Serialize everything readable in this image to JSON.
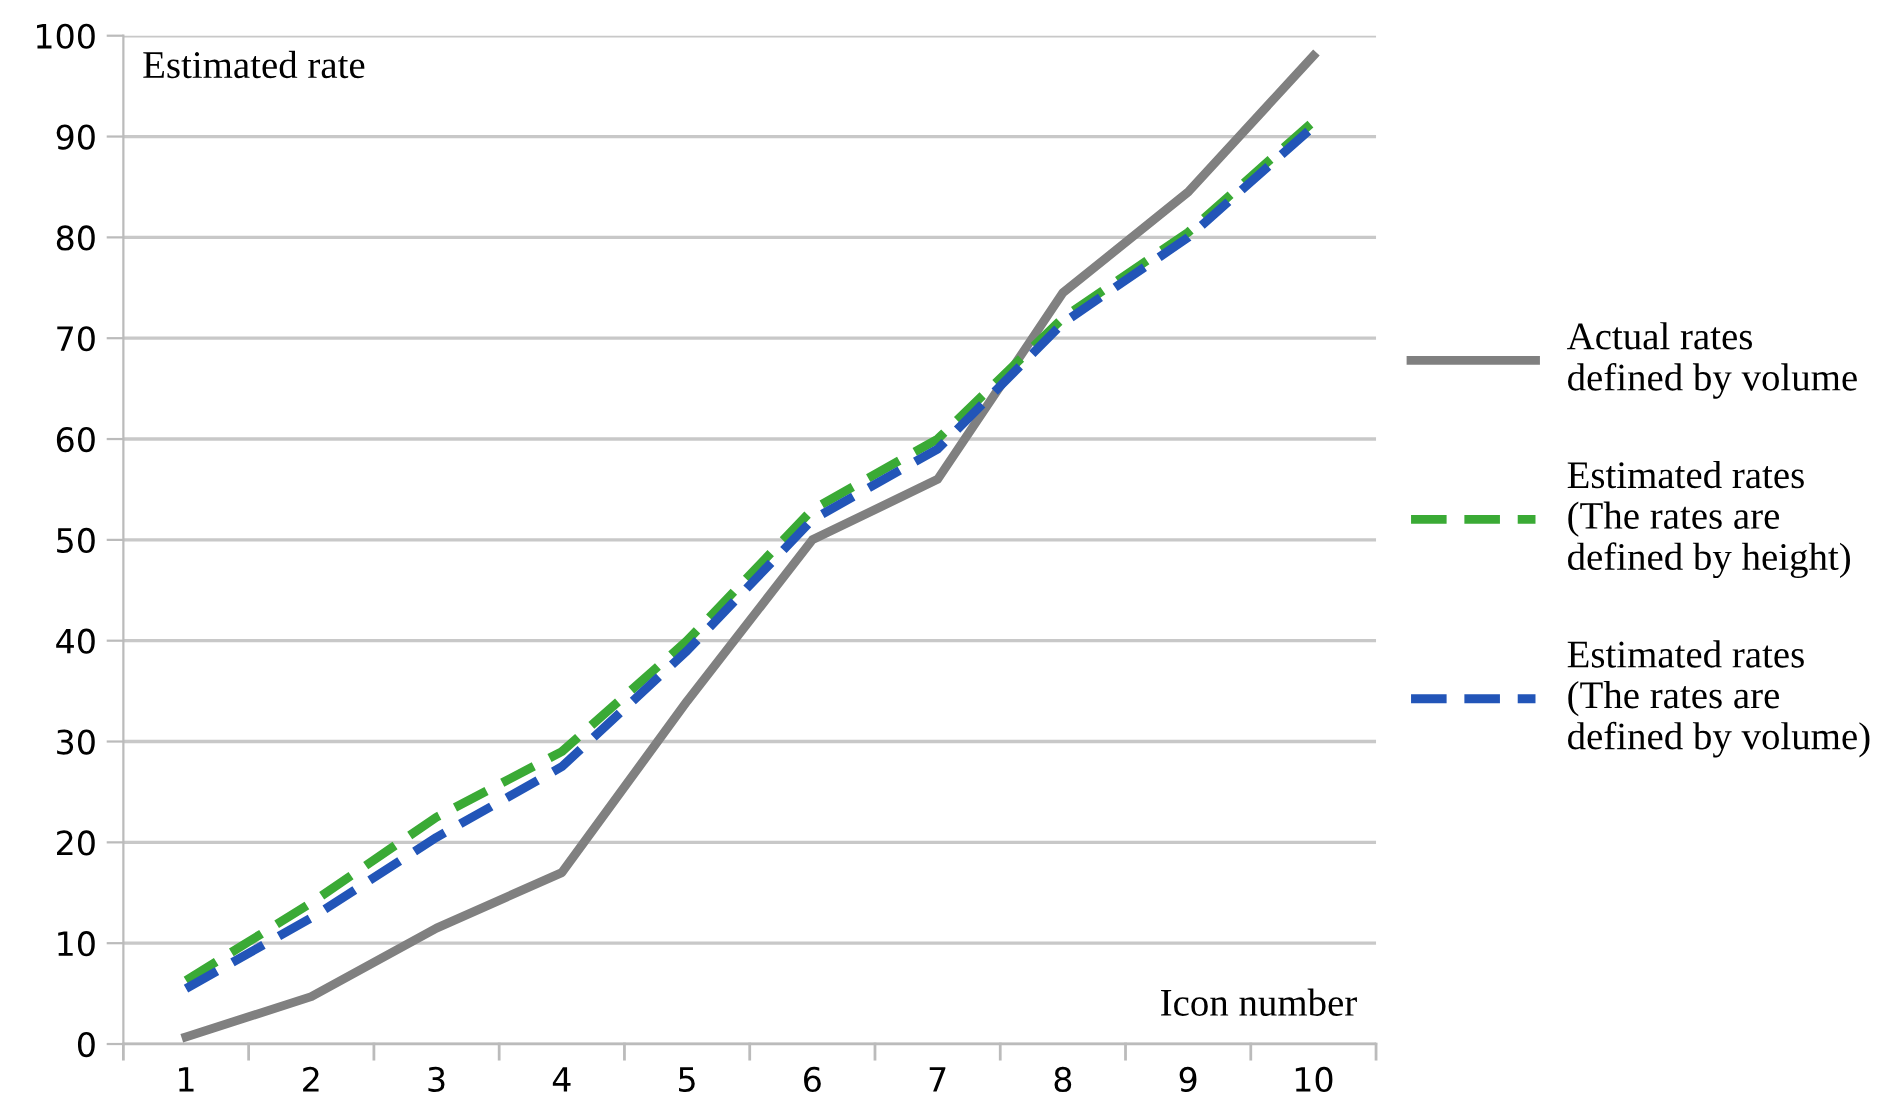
{
  "chart_data": {
    "type": "line",
    "xlabel": "Icon number",
    "ylabel": "Estimated rate",
    "categories": [
      "1",
      "2",
      "3",
      "4",
      "5",
      "6",
      "7",
      "8",
      "9",
      "10"
    ],
    "series": [
      {
        "name": "Actual rates\ndefined by volume",
        "color": "#808080",
        "line_style": "solid",
        "values": [
          0.7,
          4.7,
          11.5,
          17,
          34,
          50,
          56,
          74.5,
          84.5,
          98
        ]
      },
      {
        "name": "Estimated rates\n(The rates are\ndefined by height)",
        "color": "#3aaa35",
        "line_style": "dashed",
        "values": [
          6.3,
          14,
          22.5,
          29,
          40,
          53,
          60,
          72,
          80.5,
          91.5
        ]
      },
      {
        "name": "Estimated rates\n(The rates are\ndefined by volume)",
        "color": "#2255b8",
        "line_style": "dashed",
        "values": [
          5.5,
          12.5,
          20.5,
          27.5,
          39,
          52,
          59,
          71.5,
          80,
          91
        ]
      }
    ],
    "ylim": [
      0,
      100
    ],
    "yticks": [
      0,
      10,
      20,
      30,
      40,
      50,
      60,
      70,
      80,
      90,
      100
    ],
    "grid": "y",
    "legend": "right",
    "marker": "none"
  }
}
